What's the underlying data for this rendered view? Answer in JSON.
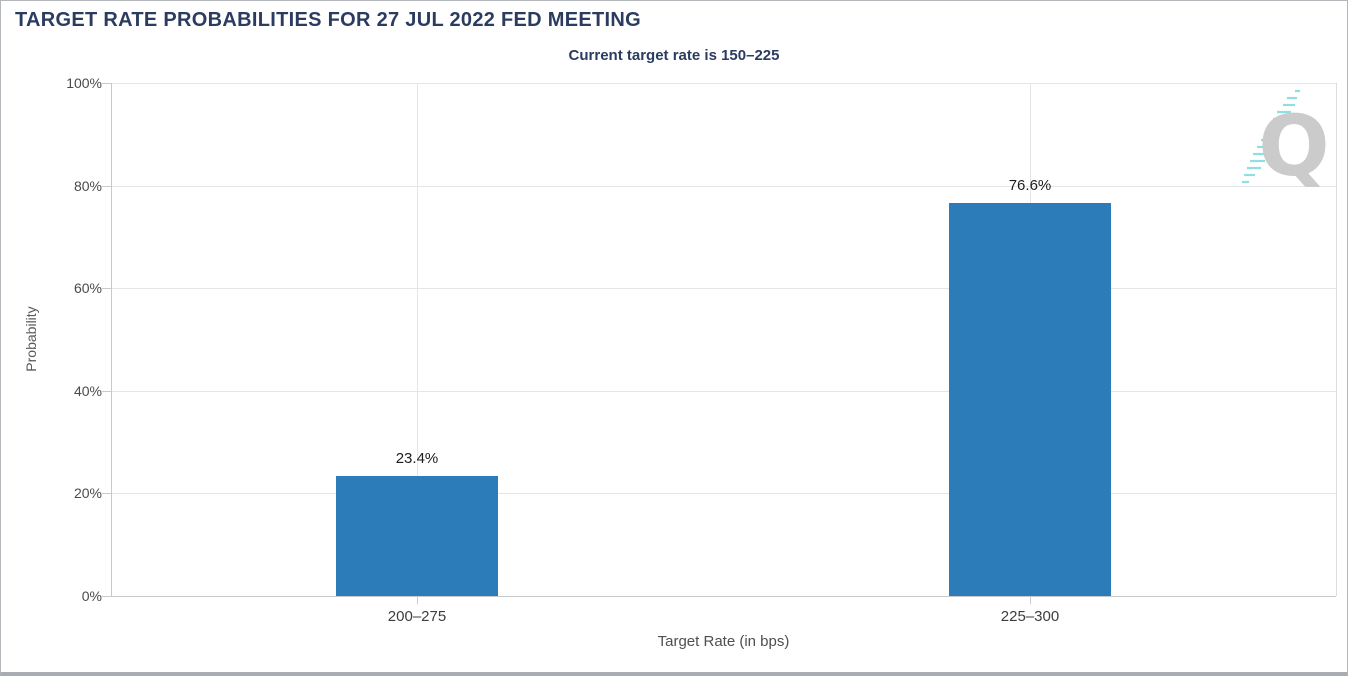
{
  "header": {
    "title": "TARGET RATE PROBABILITIES FOR 27 JUL 2022 FED MEETING",
    "subtitle": "Current target rate is 150–225"
  },
  "watermark": {
    "letter": "Q",
    "name": "quikstrike-logo",
    "letter_color": "#cbcbcb",
    "dash_color": "#8fdfe2"
  },
  "chart_data": {
    "type": "bar",
    "title": "TARGET RATE PROBABILITIES FOR 27 JUL 2022 FED MEETING",
    "subtitle": "Current target rate is 150–225",
    "categories": [
      "200–275",
      "225–300"
    ],
    "values": [
      23.4,
      76.6
    ],
    "value_labels": [
      "23.4%",
      "76.6%"
    ],
    "xlabel": "Target Rate (in bps)",
    "ylabel": "Probability",
    "ylim": [
      0,
      100
    ],
    "ytick_step": 20,
    "ytick_labels": [
      "0%",
      "20%",
      "40%",
      "60%",
      "80%",
      "100%"
    ],
    "grid": true,
    "legend": "none",
    "bar_color": "#2b7cb8"
  },
  "colors": {
    "title_text": "#2b3c60",
    "bar": "#2b7cb8",
    "grid": "#e4e5e6",
    "axis": "#c7c9cb",
    "tick_text": "#4a4a4a",
    "frame_border": "#b3b6ba"
  }
}
